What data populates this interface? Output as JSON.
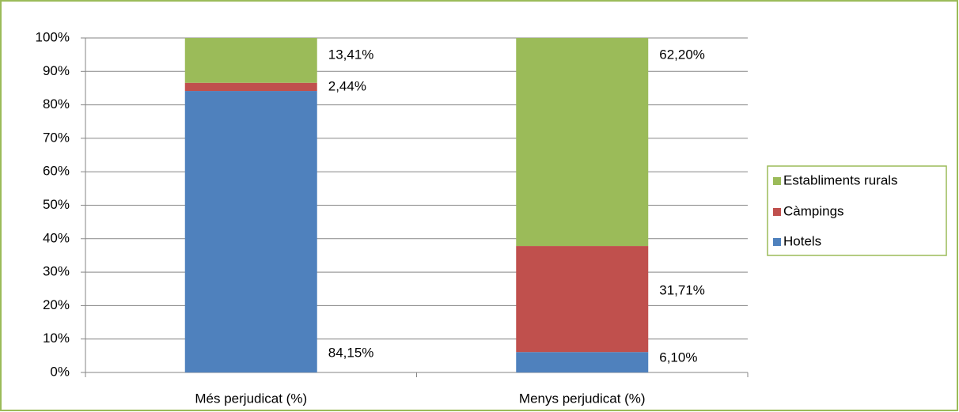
{
  "chart_data": {
    "type": "bar",
    "stacked": true,
    "categories": [
      "Més perjudicat (%)",
      "Menys perjudicat (%)"
    ],
    "series": [
      {
        "name": "Hotels",
        "color": "#4f81bd",
        "values": [
          84.15,
          6.1
        ],
        "value_labels": [
          "84,15%",
          "6,10%"
        ]
      },
      {
        "name": "Càmpings",
        "color": "#c0504d",
        "values": [
          2.44,
          31.71
        ],
        "value_labels": [
          "2,44%",
          "31,71%"
        ]
      },
      {
        "name": "Establiments rurals",
        "color": "#9bbb59",
        "values": [
          13.41,
          62.2
        ],
        "value_labels": [
          "13,41%",
          "62,20%"
        ]
      }
    ],
    "ylim": [
      0,
      100
    ],
    "yticks": [
      {
        "value": 0,
        "label": "0%"
      },
      {
        "value": 10,
        "label": "10%"
      },
      {
        "value": 20,
        "label": "20%"
      },
      {
        "value": 30,
        "label": "30%"
      },
      {
        "value": 40,
        "label": "40%"
      },
      {
        "value": 50,
        "label": "50%"
      },
      {
        "value": 60,
        "label": "60%"
      },
      {
        "value": 70,
        "label": "70%"
      },
      {
        "value": 80,
        "label": "80%"
      },
      {
        "value": 90,
        "label": "90%"
      },
      {
        "value": 100,
        "label": "100%"
      }
    ],
    "grid": true,
    "legend": "right"
  }
}
